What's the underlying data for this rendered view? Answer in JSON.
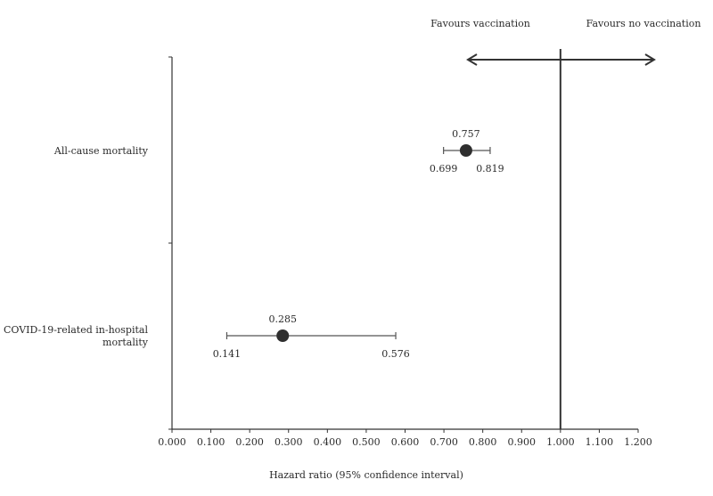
{
  "chart_data": {
    "type": "forest",
    "title": "",
    "xlabel": "Hazard ratio (95% confidence interval)",
    "ylabel": "",
    "xlim": [
      0.0,
      1.2
    ],
    "xticks": [
      "0.000",
      "0.100",
      "0.200",
      "0.300",
      "0.400",
      "0.500",
      "0.600",
      "0.700",
      "0.800",
      "0.900",
      "1.000",
      "1.100",
      "1.200"
    ],
    "reference_line": 1.0,
    "grid": false,
    "favours_left": "Favours vaccination",
    "favours_right": "Favours no vaccination",
    "rows": [
      {
        "label_lines": [
          "All-cause mortality"
        ],
        "estimate": 0.757,
        "lower": 0.699,
        "upper": 0.819,
        "estimate_label": "0.757",
        "lower_label": "0.699",
        "upper_label": "0.819"
      },
      {
        "label_lines": [
          "COVID-19-related in-hospital",
          "mortality"
        ],
        "estimate": 0.285,
        "lower": 0.141,
        "upper": 0.576,
        "estimate_label": "0.285",
        "lower_label": "0.141",
        "upper_label": "0.576"
      }
    ],
    "colors": {
      "marker": "#2f2f2f",
      "line": "#555555",
      "axis": "#333333",
      "ref": "#333333"
    }
  }
}
